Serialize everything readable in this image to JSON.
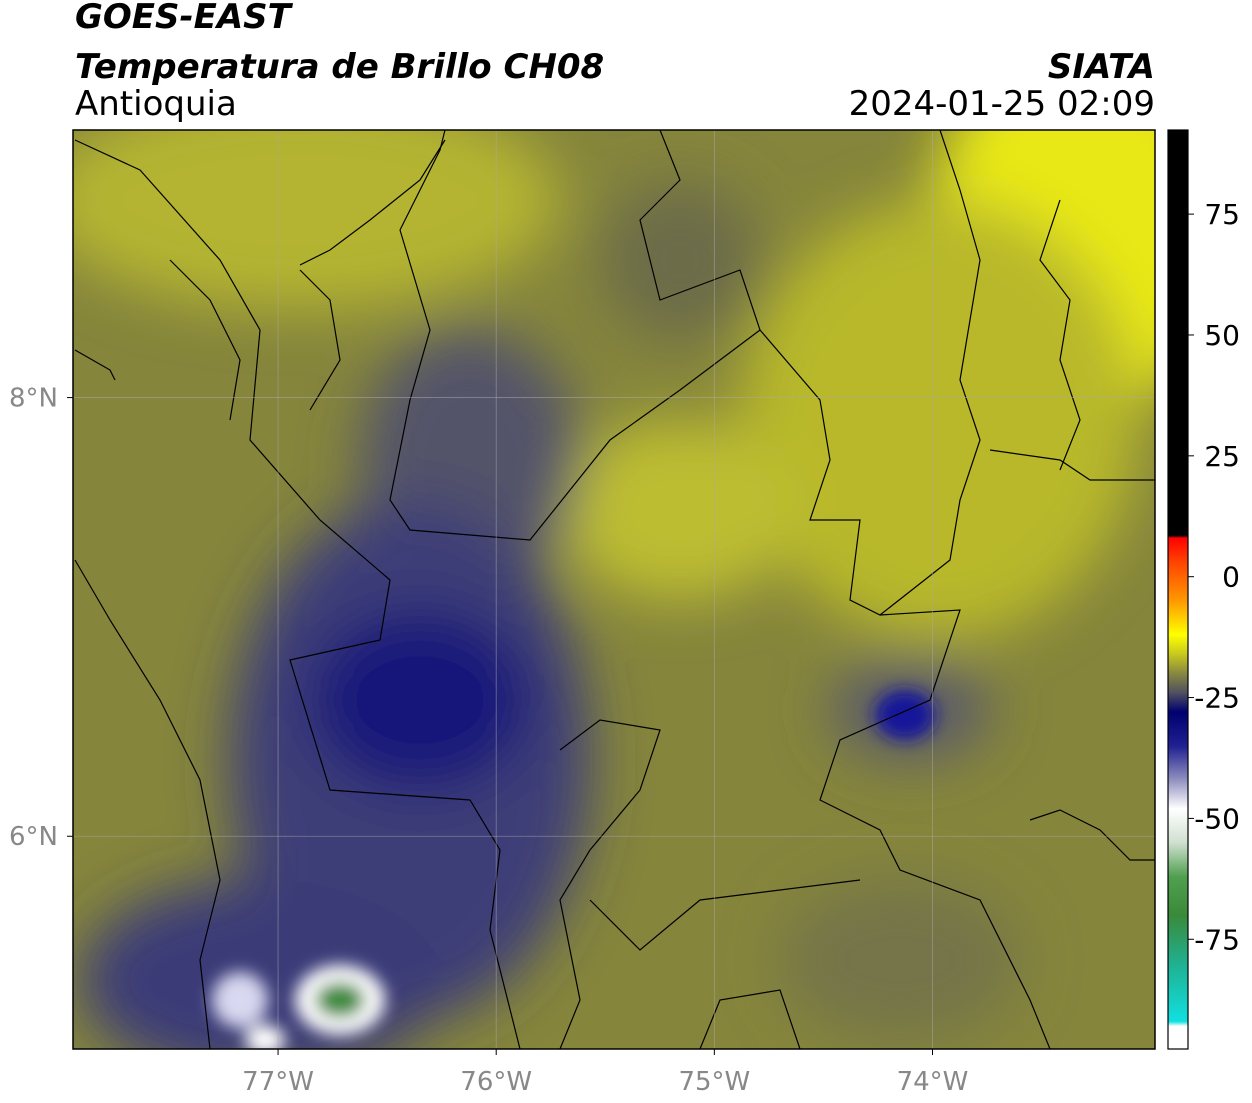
{
  "header": {
    "product": "GOES-EAST",
    "title": "Temperatura de Brillo CH08",
    "source": "SIATA",
    "region": "Antioquia",
    "datetime": "2024-01-25 02:09"
  },
  "map": {
    "xlim": [
      -77.94,
      -72.98
    ],
    "ylim": [
      5.03,
      9.22
    ],
    "xticks": [
      {
        "value": -77,
        "label": "77°W"
      },
      {
        "value": -76,
        "label": "76°W"
      },
      {
        "value": -75,
        "label": "75°W"
      },
      {
        "value": -74,
        "label": "74°W"
      }
    ],
    "yticks": [
      {
        "value": 6,
        "label": "6°N"
      },
      {
        "value": 8,
        "label": "8°N"
      }
    ],
    "grid": true
  },
  "colorbar": {
    "lim": [
      -97.7,
      92.4
    ],
    "ticks": [
      75,
      50,
      25,
      0,
      -25,
      -50,
      -75
    ],
    "stops": [
      {
        "value": -97.7,
        "color": "#ffffff"
      },
      {
        "value": -93,
        "color": "#ffffff"
      },
      {
        "value": -92,
        "color": "#10e0e0"
      },
      {
        "value": -80,
        "color": "#20b090"
      },
      {
        "value": -70,
        "color": "#3a8a3a"
      },
      {
        "value": -62,
        "color": "#50a050"
      },
      {
        "value": -55,
        "color": "#d0e0d0"
      },
      {
        "value": -48,
        "color": "#ffffff"
      },
      {
        "value": -42,
        "color": "#9090c0"
      },
      {
        "value": -35,
        "color": "#202090"
      },
      {
        "value": -28,
        "color": "#000070"
      },
      {
        "value": -24,
        "color": "#505060"
      },
      {
        "value": -20,
        "color": "#888840"
      },
      {
        "value": -16,
        "color": "#c8c820"
      },
      {
        "value": -12,
        "color": "#ffff00"
      },
      {
        "value": -5,
        "color": "#ff9900"
      },
      {
        "value": 3,
        "color": "#ff4400"
      },
      {
        "value": 8,
        "color": "#ff0000"
      },
      {
        "value": 8.5,
        "color": "#000000"
      },
      {
        "value": 92.4,
        "color": "#000000"
      }
    ]
  }
}
